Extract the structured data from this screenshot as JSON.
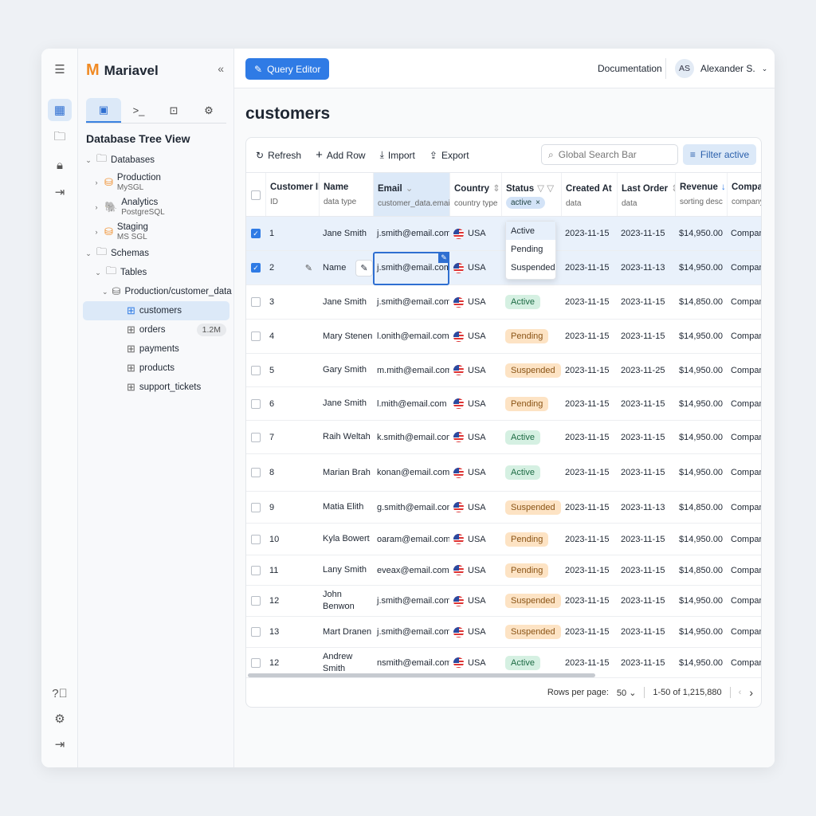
{
  "app": {
    "name": "Mariavel",
    "collapse_icon": "double-chevron-left-icon"
  },
  "rail": {
    "icons": [
      "menu-icon",
      "dashboard-icon",
      "folder-icon",
      "lock-icon",
      "logout-icon"
    ],
    "bottom_icons": [
      "help-icon",
      "gear-icon",
      "logout-icon"
    ]
  },
  "sidebar": {
    "tabs": [
      "database-icon",
      "terminal-icon",
      "console-icon",
      "gear-icon"
    ],
    "title": "Database Tree View",
    "databases_label": "Databases",
    "databases": [
      {
        "name": "Production",
        "type": "MySGL"
      },
      {
        "name": "Analytics",
        "type": "PostgreSQL"
      },
      {
        "name": "Staging",
        "type": "MS SGL"
      }
    ],
    "schemas_label": "Schemas",
    "tables_label": "Tables",
    "schema_path": "Production/customer_data",
    "tables": [
      {
        "name": "customers",
        "selected": true
      },
      {
        "name": "orders",
        "badge": "1.2M"
      },
      {
        "name": "payments"
      },
      {
        "name": "products"
      },
      {
        "name": "support_tickets"
      }
    ]
  },
  "topbar": {
    "query_editor": "Query Editor",
    "documentation": "Documentation",
    "user_initials": "AS",
    "user_name": "Alexander S."
  },
  "page_title": "customers",
  "toolbar": {
    "refresh": "Refresh",
    "add_row": "Add Row",
    "import": "Import",
    "export": "Export",
    "search_placeholder": "Global Search Bar",
    "filter": "Filter active"
  },
  "columns": [
    {
      "h": "Customer ID",
      "s": "ID"
    },
    {
      "h": "Name",
      "s": "data type"
    },
    {
      "h": "Email",
      "s": "customer_data.email"
    },
    {
      "h": "Country",
      "s": "country type"
    },
    {
      "h": "Status",
      "s": "active"
    },
    {
      "h": "Created At",
      "s": "data"
    },
    {
      "h": "Last Order",
      "s": "data"
    },
    {
      "h": "Revenue",
      "s": "sorting desc"
    },
    {
      "h": "Company",
      "s": "company"
    }
  ],
  "status_menu": [
    "Active",
    "Pending",
    "Suspended"
  ],
  "rows": [
    {
      "id": "1",
      "name": "Jane Smith",
      "email": "j.smith@email.com",
      "country": "USA",
      "status": "",
      "created": "2023-11-15",
      "last": "2023-11-15",
      "revenue": "$14,950.00",
      "company": "Company",
      "checked": true
    },
    {
      "id": "2",
      "name": "Name",
      "email": "j.smith@email.com",
      "country": "USA",
      "status": "",
      "created": "2023-11-15",
      "last": "2023-11-13",
      "revenue": "$14,950.00",
      "company": "Company",
      "checked": true
    },
    {
      "id": "3",
      "name": "Jane Smith",
      "email": "j.smith@email.com",
      "country": "USA",
      "status": "Active",
      "created": "2023-11-15",
      "last": "2023-11-15",
      "revenue": "$14,850.00",
      "company": "Company"
    },
    {
      "id": "4",
      "name": "Mary Stenen",
      "email": "l.onith@email.com",
      "country": "USA",
      "status": "Pending",
      "created": "2023-11-15",
      "last": "2023-11-15",
      "revenue": "$14,950.00",
      "company": "Company"
    },
    {
      "id": "5",
      "name": "Gary Smith",
      "email": "m.mith@email.com",
      "country": "USA",
      "status": "Suspended",
      "created": "2023-11-15",
      "last": "2023-11-25",
      "revenue": "$14,950.00",
      "company": "Company"
    },
    {
      "id": "6",
      "name": "Jane Smith",
      "email": "l.mith@email.com",
      "country": "USA",
      "status": "Pending",
      "created": "2023-11-15",
      "last": "2023-11-15",
      "revenue": "$14,950.00",
      "company": "Company"
    },
    {
      "id": "7",
      "name": "Raih Weltah",
      "email": "k.smith@email.com",
      "country": "USA",
      "status": "Active",
      "created": "2023-11-15",
      "last": "2023-11-15",
      "revenue": "$14,950.00",
      "company": "Company"
    },
    {
      "id": "8",
      "name": "Marian Brah",
      "email": "konan@email.com",
      "country": "USA",
      "status": "Active",
      "created": "2023-11-15",
      "last": "2023-11-15",
      "revenue": "$14,950.00",
      "company": "Company"
    },
    {
      "id": "9",
      "name": "Matia Elith",
      "email": "g.smith@email.com",
      "country": "USA",
      "status": "Suspended",
      "created": "2023-11-15",
      "last": "2023-11-13",
      "revenue": "$14,850.00",
      "company": "Company"
    },
    {
      "id": "10",
      "name": "Kyla Bowert",
      "email": "oaram@email.com",
      "country": "USA",
      "status": "Pending",
      "created": "2023-11-15",
      "last": "2023-11-15",
      "revenue": "$14,950.00",
      "company": "Company"
    },
    {
      "id": "11",
      "name": "Lany Smith",
      "email": "eveax@email.com",
      "country": "USA",
      "status": "Pending",
      "created": "2023-11-15",
      "last": "2023-11-15",
      "revenue": "$14,850.00",
      "company": "Company"
    },
    {
      "id": "12",
      "name": "John Benwon",
      "email": "j.smith@email.com",
      "country": "USA",
      "status": "Suspended",
      "created": "2023-11-15",
      "last": "2023-11-15",
      "revenue": "$14,950.00",
      "company": "Company"
    },
    {
      "id": "13",
      "name": "Mart Dranen",
      "email": "j.smith@email.com",
      "country": "USA",
      "status": "Suspended",
      "created": "2023-11-15",
      "last": "2023-11-15",
      "revenue": "$14,950.00",
      "company": "Company"
    },
    {
      "id": "12",
      "name": "Andrew Smith",
      "email": "nsmith@email.com",
      "country": "USA",
      "status": "Active",
      "created": "2023-11-15",
      "last": "2023-11-15",
      "revenue": "$14,950.00",
      "company": "Company"
    }
  ],
  "pagination": {
    "rows_per_page_label": "Rows per page:",
    "rows_per_page": "50",
    "range": "1-50 of 1,215,880"
  }
}
